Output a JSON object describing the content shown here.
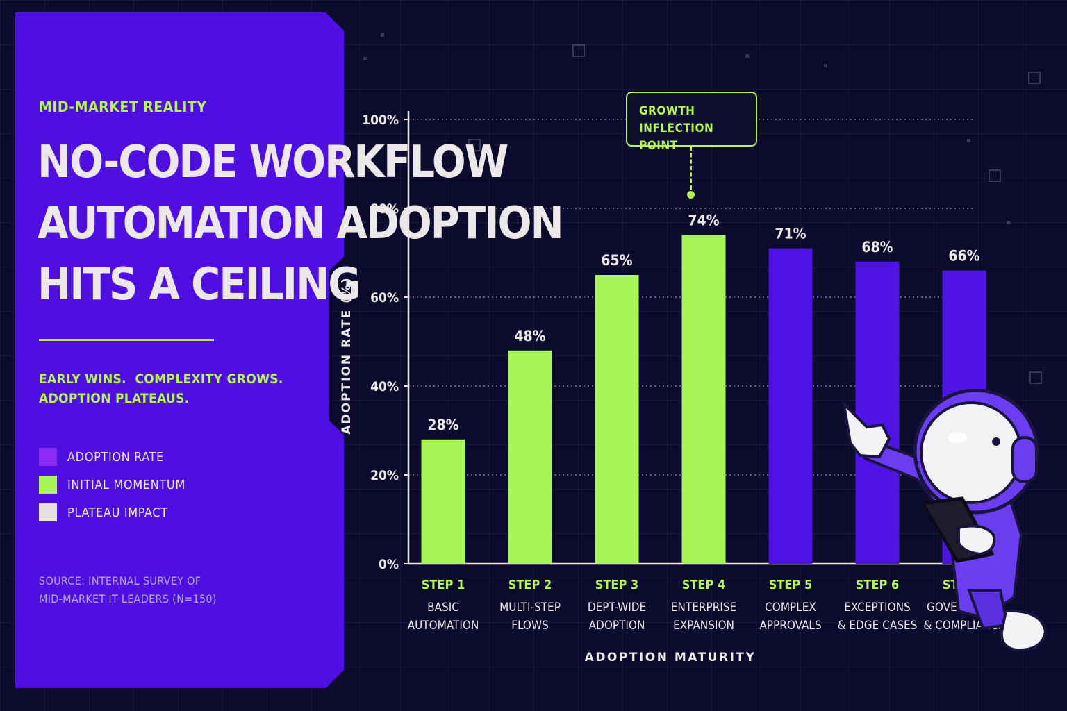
{
  "panel": {
    "eyebrow": "MID-MARKET REALITY",
    "headline_lines": [
      "NO-CODE WORKFLOW",
      "AUTOMATION ADOPTION",
      "HITS A CEILING"
    ],
    "tagline_lines": [
      "EARLY WINS.  COMPLEXITY GROWS.",
      "ADOPTION PLATEAUS."
    ],
    "legend": [
      {
        "label": "ADOPTION RATE",
        "color": "#8b2cf5"
      },
      {
        "label": "INITIAL MOMENTUM",
        "color": "#a8f55a"
      },
      {
        "label": "PLATEAU IMPACT",
        "color": "#e6e0e4"
      }
    ],
    "source_lines": [
      "SOURCE: INTERNAL SURVEY OF",
      "MID-MARKET IT LEADERS (N=150)"
    ]
  },
  "callout": {
    "lines": [
      "GROWTH",
      "INFLECTION POINT"
    ],
    "color": "#b6f45a"
  },
  "colors": {
    "panel": "#4f0fe0",
    "accent_green": "#a8f55a",
    "bar_purple": "#4f13e6",
    "background": "#0c0b2e"
  },
  "chart_data": {
    "type": "bar",
    "categories": [
      {
        "step": "STEP 1",
        "label_lines": [
          "BASIC",
          "AUTOMATION"
        ]
      },
      {
        "step": "STEP 2",
        "label_lines": [
          "MULTI-STEP",
          "FLOWS"
        ]
      },
      {
        "step": "STEP 3",
        "label_lines": [
          "DEPT-WIDE",
          "ADOPTION"
        ]
      },
      {
        "step": "STEP 4",
        "label_lines": [
          "ENTERPRISE",
          "EXPANSION"
        ]
      },
      {
        "step": "STEP 5",
        "label_lines": [
          "COMPLEX",
          "APPROVALS"
        ]
      },
      {
        "step": "STEP 6",
        "label_lines": [
          "EXCEPTIONS",
          "& EDGE CASES"
        ]
      },
      {
        "step": "STEP 7",
        "label_lines": [
          "GOVERNANCE",
          "& COMPLIANCE"
        ]
      }
    ],
    "values": [
      28,
      48,
      65,
      74,
      71,
      68,
      66
    ],
    "value_labels": [
      "28%",
      "48%",
      "65%",
      "74%",
      "71%",
      "68%",
      "66%"
    ],
    "bar_colors": [
      "#a8f55a",
      "#a8f55a",
      "#a8f55a",
      "#a8f55a",
      "#4f13e6",
      "#4f13e6",
      "#4f13e6"
    ],
    "ylabel": "ADOPTION RATE (%)",
    "xlabel": "ADOPTION MATURITY",
    "ylim": [
      0,
      100
    ],
    "yticks": [
      0,
      20,
      40,
      60,
      80,
      100
    ],
    "ytick_labels": [
      "0%",
      "20%",
      "40%",
      "60%",
      "80%",
      "100%"
    ],
    "grid": true,
    "annotation": {
      "category": "STEP 4",
      "text": "GROWTH INFLECTION POINT"
    }
  }
}
